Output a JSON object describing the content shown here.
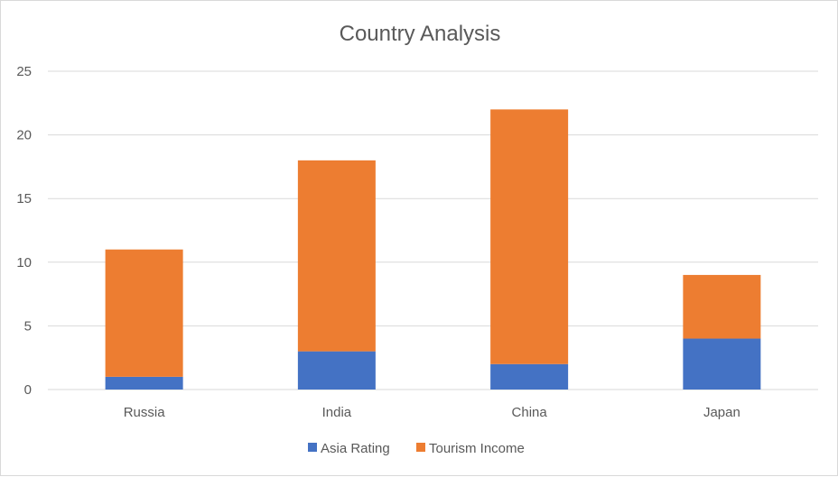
{
  "chart_data": {
    "type": "bar",
    "stacked": true,
    "title": "Country Analysis",
    "categories": [
      "Russia",
      "India",
      "China",
      "Japan"
    ],
    "series": [
      {
        "name": "Asia Rating",
        "values": [
          1,
          3,
          2,
          4
        ],
        "color": "#4472c4"
      },
      {
        "name": "Tourism Income",
        "values": [
          10,
          15,
          20,
          5
        ],
        "color": "#ed7d31"
      }
    ],
    "ylim": [
      0,
      25
    ],
    "yticks": [
      "0",
      "5",
      "10",
      "15",
      "20",
      "25"
    ],
    "grid": true,
    "legend": "bottom"
  }
}
